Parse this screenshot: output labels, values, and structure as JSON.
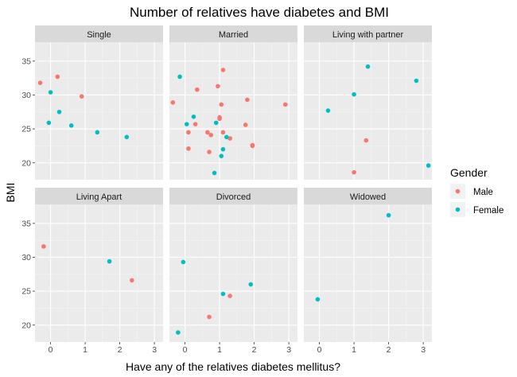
{
  "chart_data": {
    "type": "scatter",
    "title": "Number of relatives have diabetes and BMI",
    "xlabel": "Have any of the relatives diabetes mellitus?",
    "ylabel": "BMI",
    "xlim": [
      -0.45,
      3.25
    ],
    "ylim": [
      17.5,
      37.8
    ],
    "x_ticks": [
      0,
      1,
      2,
      3
    ],
    "y_ticks": [
      20,
      25,
      30,
      35
    ],
    "facet_layout": {
      "rows": 2,
      "cols": 3
    },
    "legend": {
      "title": "Gender",
      "placement": "right",
      "entries": [
        {
          "label": "Male",
          "color": "#F8766D"
        },
        {
          "label": "Female",
          "color": "#00BFC4"
        }
      ]
    },
    "panels": [
      {
        "label": "Single",
        "points": [
          {
            "x": -0.3,
            "y": 31.8,
            "g": "Male"
          },
          {
            "x": 0.2,
            "y": 32.7,
            "g": "Male"
          },
          {
            "x": 0.9,
            "y": 29.8,
            "g": "Male"
          },
          {
            "x": 0.0,
            "y": 30.4,
            "g": "Female"
          },
          {
            "x": 0.25,
            "y": 27.5,
            "g": "Female"
          },
          {
            "x": -0.05,
            "y": 25.9,
            "g": "Female"
          },
          {
            "x": 0.6,
            "y": 25.5,
            "g": "Female"
          },
          {
            "x": 1.35,
            "y": 24.5,
            "g": "Female"
          },
          {
            "x": 2.2,
            "y": 23.8,
            "g": "Female"
          }
        ]
      },
      {
        "label": "Married",
        "points": [
          {
            "x": -0.35,
            "y": 28.9,
            "g": "Male"
          },
          {
            "x": 0.35,
            "y": 30.8,
            "g": "Male"
          },
          {
            "x": 0.95,
            "y": 31.3,
            "g": "Male"
          },
          {
            "x": 1.1,
            "y": 33.7,
            "g": "Male"
          },
          {
            "x": 1.05,
            "y": 28.6,
            "g": "Male"
          },
          {
            "x": 1.8,
            "y": 29.3,
            "g": "Male"
          },
          {
            "x": 2.9,
            "y": 28.6,
            "g": "Male"
          },
          {
            "x": 1.0,
            "y": 26.7,
            "g": "Male"
          },
          {
            "x": 1.0,
            "y": 26.5,
            "g": "Male"
          },
          {
            "x": 0.3,
            "y": 25.7,
            "g": "Male"
          },
          {
            "x": 0.65,
            "y": 24.5,
            "g": "Male"
          },
          {
            "x": 0.75,
            "y": 24.1,
            "g": "Male"
          },
          {
            "x": 0.1,
            "y": 24.5,
            "g": "Male"
          },
          {
            "x": 1.1,
            "y": 24.5,
            "g": "Male"
          },
          {
            "x": 1.3,
            "y": 23.6,
            "g": "Male"
          },
          {
            "x": 1.75,
            "y": 25.6,
            "g": "Male"
          },
          {
            "x": 1.95,
            "y": 22.6,
            "g": "Male"
          },
          {
            "x": 1.95,
            "y": 22.5,
            "g": "Male"
          },
          {
            "x": 0.1,
            "y": 22.1,
            "g": "Male"
          },
          {
            "x": 0.7,
            "y": 21.6,
            "g": "Male"
          },
          {
            "x": -0.15,
            "y": 32.7,
            "g": "Female"
          },
          {
            "x": 0.25,
            "y": 26.8,
            "g": "Female"
          },
          {
            "x": 0.05,
            "y": 25.7,
            "g": "Female"
          },
          {
            "x": 0.9,
            "y": 25.9,
            "g": "Female"
          },
          {
            "x": 1.2,
            "y": 23.8,
            "g": "Female"
          },
          {
            "x": 1.1,
            "y": 22.0,
            "g": "Female"
          },
          {
            "x": 1.05,
            "y": 21.0,
            "g": "Female"
          },
          {
            "x": 0.85,
            "y": 18.5,
            "g": "Female"
          }
        ]
      },
      {
        "label": "Living with partner",
        "points": [
          {
            "x": 1.4,
            "y": 34.2,
            "g": "Female"
          },
          {
            "x": 2.8,
            "y": 32.1,
            "g": "Female"
          },
          {
            "x": 1.0,
            "y": 30.1,
            "g": "Female"
          },
          {
            "x": 0.25,
            "y": 27.7,
            "g": "Female"
          },
          {
            "x": 3.15,
            "y": 19.6,
            "g": "Female"
          },
          {
            "x": 1.35,
            "y": 23.3,
            "g": "Male"
          },
          {
            "x": 1.0,
            "y": 18.6,
            "g": "Male"
          }
        ]
      },
      {
        "label": "Living Apart",
        "points": [
          {
            "x": -0.2,
            "y": 31.6,
            "g": "Male"
          },
          {
            "x": 2.35,
            "y": 26.6,
            "g": "Male"
          },
          {
            "x": 1.7,
            "y": 29.4,
            "g": "Female"
          }
        ]
      },
      {
        "label": "Divorced",
        "points": [
          {
            "x": -0.05,
            "y": 29.3,
            "g": "Female"
          },
          {
            "x": 1.9,
            "y": 26.0,
            "g": "Female"
          },
          {
            "x": 1.1,
            "y": 24.6,
            "g": "Female"
          },
          {
            "x": -0.2,
            "y": 18.9,
            "g": "Female"
          },
          {
            "x": 1.3,
            "y": 24.3,
            "g": "Male"
          },
          {
            "x": 0.7,
            "y": 21.2,
            "g": "Male"
          }
        ]
      },
      {
        "label": "Widowed",
        "points": [
          {
            "x": 2.0,
            "y": 36.2,
            "g": "Female"
          },
          {
            "x": -0.05,
            "y": 23.8,
            "g": "Female"
          }
        ]
      }
    ]
  }
}
